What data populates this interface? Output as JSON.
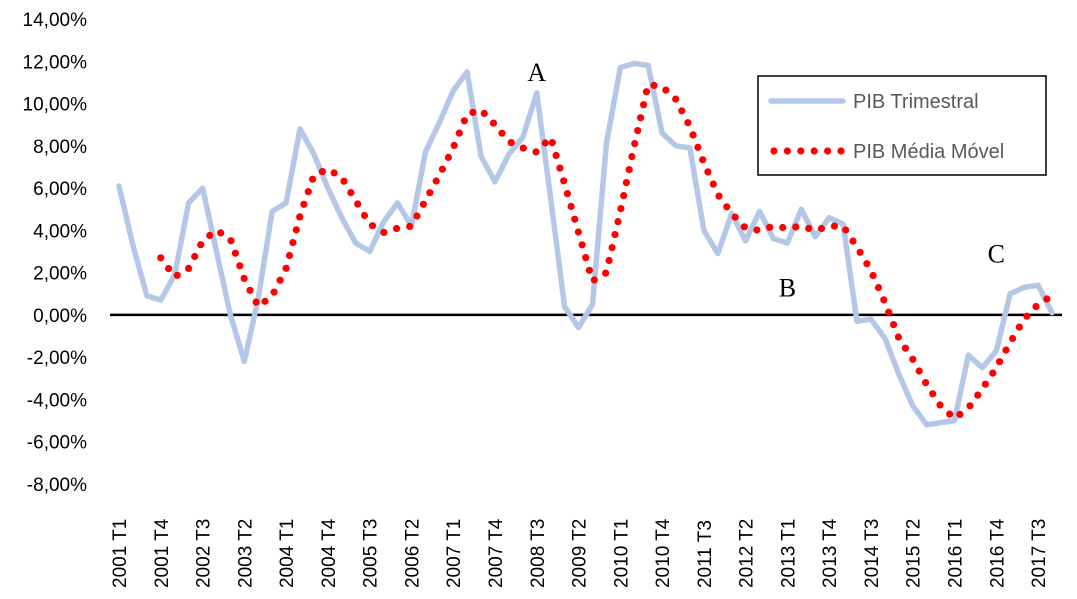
{
  "chart_data": {
    "type": "line",
    "title": "",
    "xlabel": "",
    "ylabel": "",
    "ylim": [
      -8,
      14
    ],
    "y_ticks": [
      "-8,00%",
      "-6,00%",
      "-4,00%",
      "-2,00%",
      "0,00%",
      "2,00%",
      "4,00%",
      "6,00%",
      "8,00%",
      "10,00%",
      "12,00%",
      "14,00%"
    ],
    "x_tick_labels": [
      "2001 T1",
      "2001 T4",
      "2002 T3",
      "2003 T2",
      "2004 T1",
      "2004 T4",
      "2005 T3",
      "2006 T2",
      "2007 T1",
      "2007 T4",
      "2008 T3",
      "2009 T2",
      "2010 T1",
      "2010 T4",
      "2011 T3",
      "2012 T2",
      "2013 T1",
      "2013 T4",
      "2014 T3",
      "2015 T2",
      "2016 T1",
      "2016 T4",
      "2017 T3"
    ],
    "x_tick_every": 3,
    "categories": [
      "2001 T1",
      "2001 T2",
      "2001 T3",
      "2001 T4",
      "2002 T1",
      "2002 T2",
      "2002 T3",
      "2002 T4",
      "2003 T1",
      "2003 T2",
      "2003 T3",
      "2003 T4",
      "2004 T1",
      "2004 T2",
      "2004 T3",
      "2004 T4",
      "2005 T1",
      "2005 T2",
      "2005 T3",
      "2005 T4",
      "2006 T1",
      "2006 T2",
      "2006 T3",
      "2006 T4",
      "2007 T1",
      "2007 T2",
      "2007 T3",
      "2007 T4",
      "2008 T1",
      "2008 T2",
      "2008 T3",
      "2008 T4",
      "2009 T1",
      "2009 T2",
      "2009 T3",
      "2009 T4",
      "2010 T1",
      "2010 T2",
      "2010 T3",
      "2010 T4",
      "2011 T1",
      "2011 T2",
      "2011 T3",
      "2011 T4",
      "2012 T1",
      "2012 T2",
      "2012 T3",
      "2012 T4",
      "2013 T1",
      "2013 T2",
      "2013 T3",
      "2013 T4",
      "2014 T1",
      "2014 T2",
      "2014 T3",
      "2014 T4",
      "2015 T1",
      "2015 T2",
      "2015 T3",
      "2015 T4",
      "2016 T1",
      "2016 T2",
      "2016 T3",
      "2016 T4",
      "2017 T1",
      "2017 T2",
      "2017 T3",
      "2017 T4"
    ],
    "series": [
      {
        "name": "PIB Trimestral",
        "style": "solid",
        "color": "#B4C7E7",
        "values": [
          6.1,
          3.3,
          0.9,
          0.7,
          1.9,
          5.3,
          6.0,
          3.0,
          0.0,
          -2.2,
          0.8,
          4.9,
          5.3,
          8.8,
          7.6,
          6.0,
          4.6,
          3.4,
          3.0,
          4.4,
          5.3,
          4.2,
          7.7,
          9.1,
          10.6,
          11.5,
          7.5,
          6.3,
          7.6,
          8.4,
          10.5,
          5.5,
          0.4,
          -0.6,
          0.5,
          8.1,
          11.7,
          11.9,
          11.8,
          8.6,
          8.0,
          7.9,
          4.0,
          2.9,
          4.8,
          3.5,
          4.9,
          3.6,
          3.4,
          5.0,
          3.7,
          4.6,
          4.3,
          -0.3,
          -0.2,
          -1.1,
          -2.8,
          -4.3,
          -5.2,
          -5.1,
          -5.0,
          -1.9,
          -2.5,
          -1.7,
          1.0,
          1.3,
          1.4,
          0.1
        ]
      },
      {
        "name": "PIB Média Móvel",
        "style": "dotted",
        "color": "#FF0000",
        "values": [
          null,
          null,
          null,
          2.7,
          1.8,
          2.2,
          3.5,
          4.0,
          3.6,
          1.7,
          0.4,
          0.9,
          2.2,
          4.7,
          6.6,
          6.9,
          6.5,
          5.4,
          4.3,
          3.9,
          4.1,
          4.2,
          5.4,
          6.6,
          7.9,
          9.5,
          9.7,
          9.0,
          8.2,
          7.9,
          7.7,
          8.4,
          6.2,
          3.9,
          1.6,
          2.0,
          4.9,
          8.0,
          10.9,
          10.8,
          10.2,
          8.9,
          7.2,
          5.7,
          4.8,
          4.1,
          4.0,
          4.2,
          4.1,
          4.2,
          4.0,
          4.2,
          4.2,
          3.2,
          2.1,
          0.6,
          -1.1,
          -2.1,
          -3.3,
          -4.3,
          -4.9,
          -4.4,
          -3.5,
          -2.5,
          -1.3,
          -0.2,
          0.5,
          0.9
        ]
      }
    ],
    "annotations": [
      {
        "text": "A",
        "category": "2008 T3",
        "y": 11.5
      },
      {
        "text": "B",
        "category": "2013 T1",
        "y": 1.3
      },
      {
        "text": "C",
        "category": "2016 T4",
        "y": 2.9
      }
    ],
    "zero_line": true,
    "grid": false,
    "legend_position": "top-right"
  }
}
